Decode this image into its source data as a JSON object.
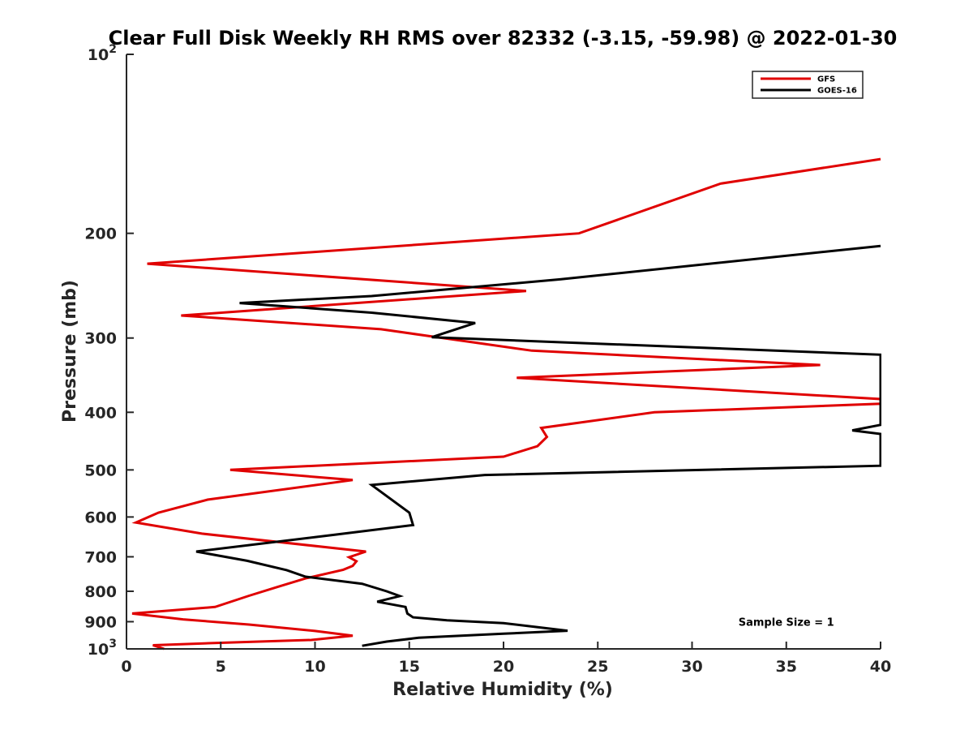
{
  "chart_data": {
    "type": "line",
    "title": "Clear Full Disk Weekly RH RMS over 82332 (-3.15, -59.98) @ 2022-01-30",
    "xlabel": "Relative Humidity (%)",
    "ylabel": "Pressure (mb)",
    "xlim": [
      0,
      40
    ],
    "ylim": [
      100,
      1000
    ],
    "yscale": "log",
    "y_reversed": true,
    "x_ticks": [
      "0",
      "5",
      "10",
      "15",
      "20",
      "25",
      "30",
      "35",
      "40"
    ],
    "y_ticks": [
      {
        "value": 100,
        "base": "10",
        "exp": "2"
      },
      {
        "value": 200,
        "label": "200"
      },
      {
        "value": 300,
        "label": "300"
      },
      {
        "value": 400,
        "label": "400"
      },
      {
        "value": 500,
        "label": "500"
      },
      {
        "value": 600,
        "label": "600"
      },
      {
        "value": 700,
        "label": "700"
      },
      {
        "value": 800,
        "label": "800"
      },
      {
        "value": 900,
        "label": "900"
      },
      {
        "value": 1000,
        "base": "10",
        "exp": "3"
      }
    ],
    "legend_position": "top-right",
    "grid": false,
    "series": [
      {
        "name": "GFS",
        "color": "#e00000",
        "points": [
          [
            40,
            150
          ],
          [
            31.5,
            165
          ],
          [
            24,
            200
          ],
          [
            1.1,
            225
          ],
          [
            21.2,
            250
          ],
          [
            2.9,
            275
          ],
          [
            13.5,
            290
          ],
          [
            21.5,
            315
          ],
          [
            36.8,
            333
          ],
          [
            20.7,
            350
          ],
          [
            40,
            380
          ],
          [
            40,
            387
          ],
          [
            28,
            400
          ],
          [
            22,
            425
          ],
          [
            22.3,
            440
          ],
          [
            21.8,
            456
          ],
          [
            20,
            475
          ],
          [
            5.5,
            500
          ],
          [
            12,
            520
          ],
          [
            4.3,
            561
          ],
          [
            1.7,
            590
          ],
          [
            0.5,
            613
          ],
          [
            4,
            640
          ],
          [
            12.7,
            686
          ],
          [
            11.8,
            701
          ],
          [
            12.2,
            712
          ],
          [
            12,
            725
          ],
          [
            11.5,
            736
          ],
          [
            9.5,
            761
          ],
          [
            8,
            787
          ],
          [
            6.5,
            814
          ],
          [
            4.7,
            850
          ],
          [
            0.3,
            872
          ],
          [
            3,
            892
          ],
          [
            6.5,
            910
          ],
          [
            10,
            933
          ],
          [
            12,
            950
          ],
          [
            9.8,
            966
          ],
          [
            4.5,
            978
          ],
          [
            1.4,
            986
          ],
          [
            2,
            1000
          ]
        ]
      },
      {
        "name": "GOES-16",
        "color": "#000000",
        "points": [
          [
            40,
            210
          ],
          [
            23,
            239
          ],
          [
            13,
            255
          ],
          [
            6,
            262
          ],
          [
            13,
            272
          ],
          [
            18.5,
            283
          ],
          [
            16.2,
            299
          ],
          [
            40,
            320
          ],
          [
            40,
            420
          ],
          [
            38.5,
            429
          ],
          [
            40,
            435
          ],
          [
            40,
            492
          ],
          [
            19,
            510
          ],
          [
            13,
            530
          ],
          [
            15,
            590
          ],
          [
            15.2,
            619
          ],
          [
            11,
            643
          ],
          [
            3.7,
            686
          ],
          [
            6.4,
            711
          ],
          [
            8.5,
            737
          ],
          [
            9.5,
            756
          ],
          [
            12.5,
            777
          ],
          [
            13.8,
            800
          ],
          [
            14.5,
            815
          ],
          [
            13.3,
            833
          ],
          [
            14.8,
            850
          ],
          [
            14.9,
            872
          ],
          [
            15.2,
            885
          ],
          [
            17,
            895
          ],
          [
            20,
            905
          ],
          [
            23.4,
            932
          ],
          [
            20,
            943
          ],
          [
            15.5,
            958
          ],
          [
            13.8,
            972
          ],
          [
            12.5,
            988
          ]
        ]
      }
    ],
    "annotations": [
      {
        "text": "Sample Size = 1",
        "x": 35,
        "y": 900
      }
    ]
  }
}
